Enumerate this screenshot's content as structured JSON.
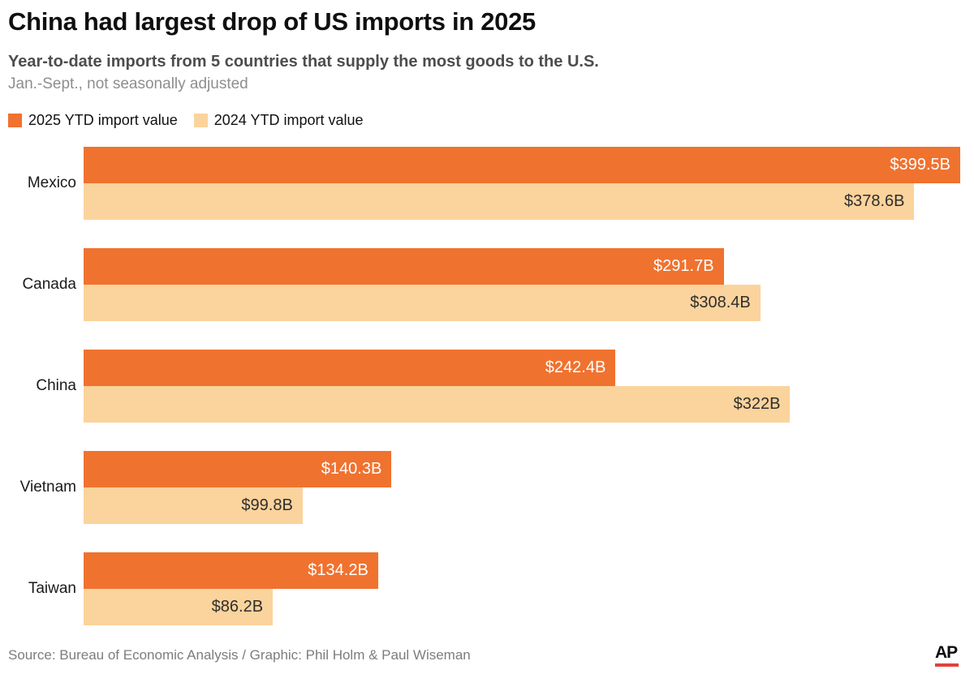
{
  "header": {
    "title": "China had largest drop of US imports in 2025",
    "subtitle": "Year-to-date imports from 5 countries that supply the most goods to the U.S.",
    "note": "Jan.-Sept., not seasonally adjusted"
  },
  "legend": [
    {
      "label": "2025 YTD import value",
      "color": "#F0722F"
    },
    {
      "label": "2024 YTD import value",
      "color": "#FBD39C"
    }
  ],
  "chart_data": {
    "type": "bar",
    "orientation": "horizontal",
    "categories": [
      "Mexico",
      "Canada",
      "China",
      "Vietnam",
      "Taiwan"
    ],
    "series": [
      {
        "name": "2025 YTD import value",
        "color": "#F0722F",
        "values": [
          399.5,
          291.7,
          242.4,
          140.3,
          134.2
        ],
        "labels": [
          "$399.5B",
          "$291.7B",
          "$242.4B",
          "$140.3B",
          "$134.2B"
        ],
        "label_color": "#ffffff"
      },
      {
        "name": "2024 YTD import value",
        "color": "#FBD39C",
        "values": [
          378.6,
          308.4,
          322,
          99.8,
          86.2
        ],
        "labels": [
          "$378.6B",
          "$308.4B",
          "$322B",
          "$99.8B",
          "$86.2B"
        ],
        "label_color": "#2e2e2e"
      }
    ],
    "xmax": 399.5,
    "grid": false,
    "value_labels": "inside-end",
    "legend_position": "top"
  },
  "footer": {
    "source": "Source: Bureau of Economic Analysis / Graphic: Phil Holm & Paul Wiseman",
    "logo": "AP",
    "logo_underline_color": "#E0403A"
  }
}
